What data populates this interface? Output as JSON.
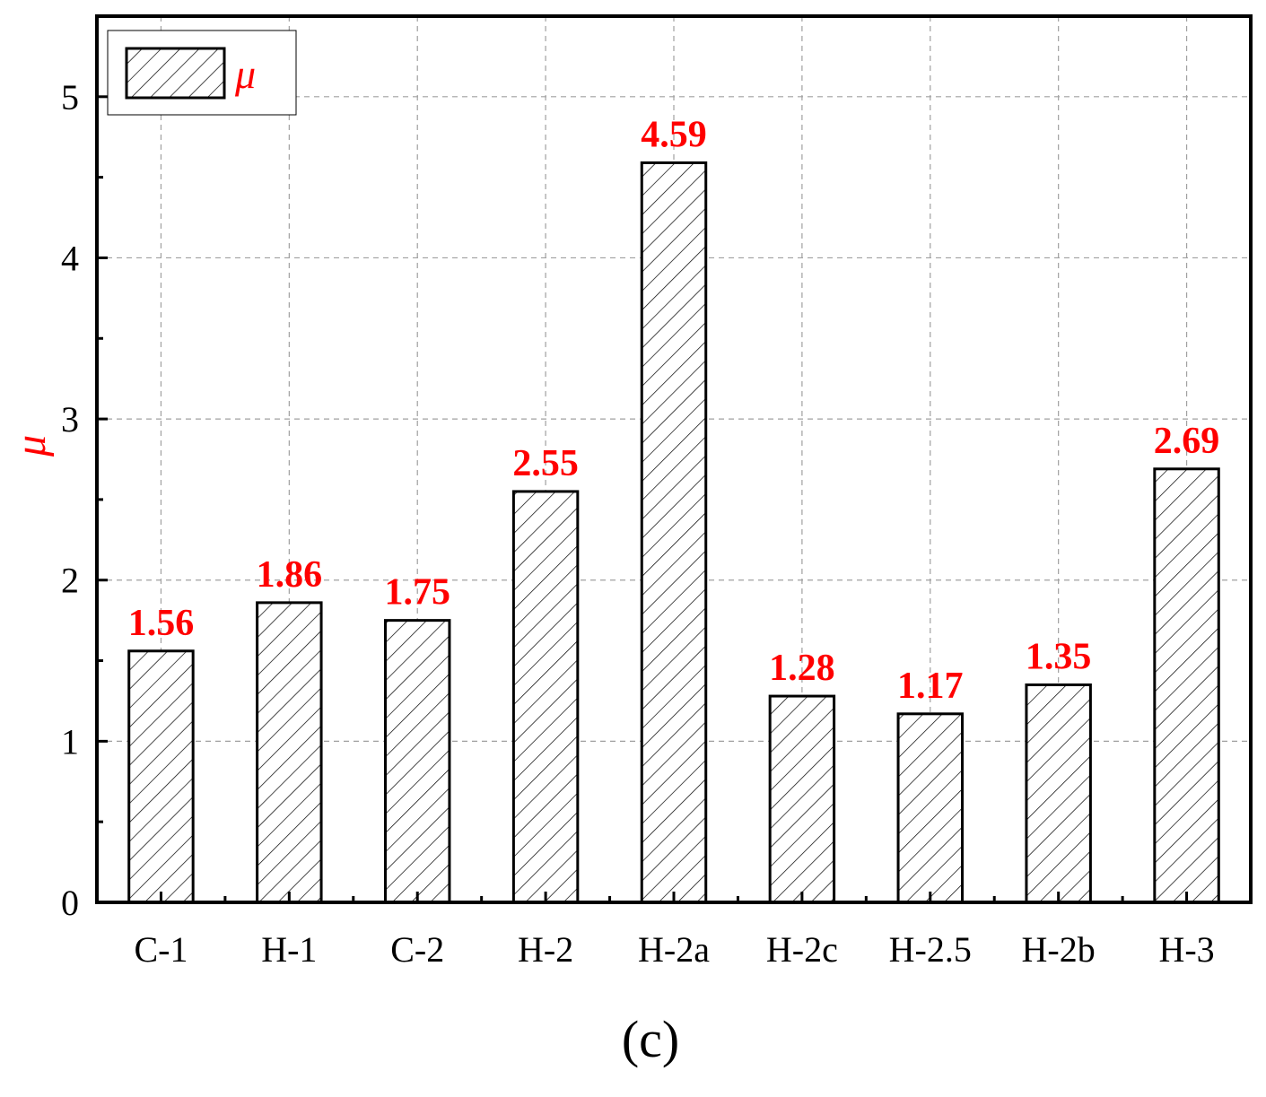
{
  "chart_data": {
    "type": "bar",
    "categories": [
      "C-1",
      "H-1",
      "C-2",
      "H-2",
      "H-2a",
      "H-2c",
      "H-2.5",
      "H-2b",
      "H-3"
    ],
    "values": [
      1.56,
      1.86,
      1.75,
      2.55,
      4.59,
      1.28,
      1.17,
      1.35,
      2.69
    ],
    "data_labels": [
      "1.56",
      "1.86",
      "1.75",
      "2.55",
      "4.59",
      "1.28",
      "1.17",
      "1.35",
      "2.69"
    ],
    "y_ticks": [
      "0",
      "1",
      "2",
      "3",
      "4",
      "5"
    ],
    "ylim": [
      0,
      5.5
    ],
    "ylabel": "μ",
    "xlabel": "",
    "legend": {
      "label": "μ",
      "position": "top-left"
    },
    "panel_label": "(c)",
    "grid": true,
    "bar_fill": "hatched",
    "colors": {
      "label": "#ff0000",
      "axis": "#000000",
      "grid": "#a0a0a0"
    }
  }
}
